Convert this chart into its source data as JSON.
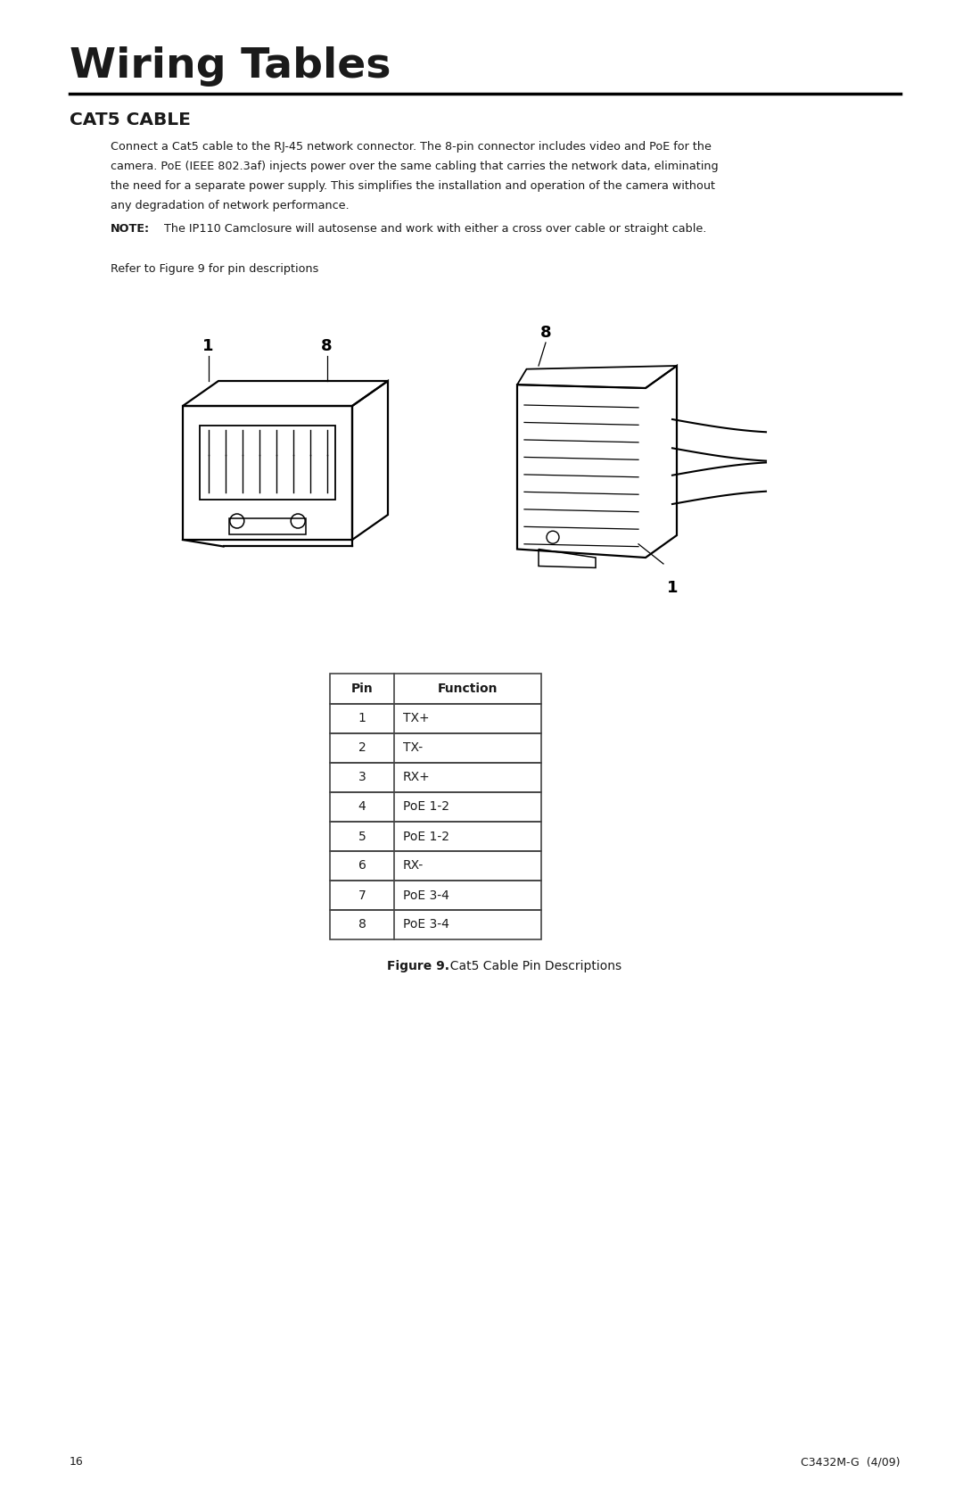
{
  "page_title": "Wiring Tables",
  "section_title": "CAT5 CABLE",
  "body_line1": "Connect a Cat5 cable to the RJ-45 network connector. The 8-pin connector includes video and PoE for the",
  "body_line2": "camera. PoE (IEEE 802.3af) injects power over the same cabling that carries the network data, eliminating",
  "body_line3": "the need for a separate power supply. This simplifies the installation and operation of the camera without",
  "body_line4": "any degradation of network performance.",
  "note_bold": "NOTE:",
  "note_rest": "  The IP110 Camclosure will autosense and work with either a cross over cable or straight cable.",
  "refer_text": "Refer to Figure 9 for pin descriptions",
  "table_headers": [
    "Pin",
    "Function"
  ],
  "table_rows": [
    [
      "1",
      "TX+"
    ],
    [
      "2",
      "TX-"
    ],
    [
      "3",
      "RX+"
    ],
    [
      "4",
      "PoE 1-2"
    ],
    [
      "5",
      "PoE 1-2"
    ],
    [
      "6",
      "RX-"
    ],
    [
      "7",
      "PoE 3-4"
    ],
    [
      "8",
      "PoE 3-4"
    ]
  ],
  "fig_caption_bold": "Figure 9.",
  "fig_caption_rest": "  Cat5 Cable Pin Descriptions",
  "page_number": "16",
  "doc_number": "C3432M-G  (4/09)",
  "bg_color": "#ffffff",
  "text_color": "#1a1a1a",
  "border_color": "#444444"
}
